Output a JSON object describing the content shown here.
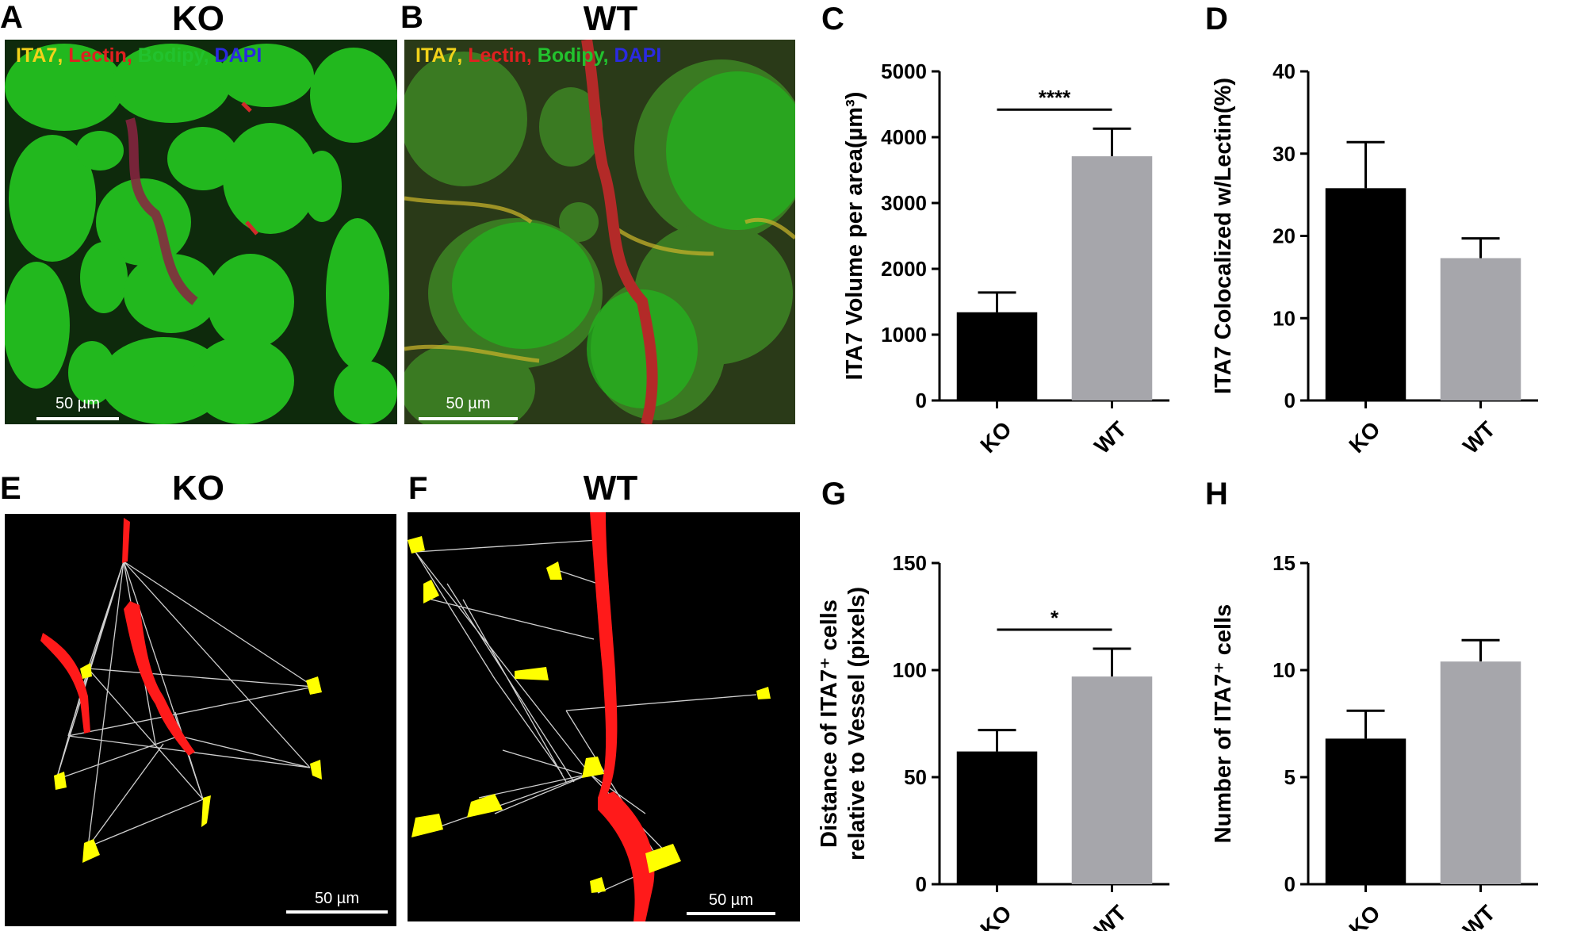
{
  "panels": {
    "A": {
      "letter": "A",
      "title": "KO"
    },
    "B": {
      "letter": "B",
      "title": "WT"
    },
    "C": {
      "letter": "C"
    },
    "D": {
      "letter": "D"
    },
    "E": {
      "letter": "E",
      "title": "KO"
    },
    "F": {
      "letter": "F",
      "title": "WT"
    },
    "G": {
      "letter": "G"
    },
    "H": {
      "letter": "H"
    }
  },
  "stain_legend": [
    {
      "text": "ITA7",
      "color": "#f2d21a"
    },
    {
      "text": ", ",
      "color": "#f2d21a"
    },
    {
      "text": "Lectin",
      "color": "#e02020"
    },
    {
      "text": ", ",
      "color": "#e02020"
    },
    {
      "text": "Bodipy",
      "color": "#22c22e"
    },
    {
      "text": ", ",
      "color": "#22c22e"
    },
    {
      "text": "DAPI",
      "color": "#2a2ae0"
    }
  ],
  "scale_bar_label": "50 µm",
  "colors": {
    "ko_bar": "#000000",
    "wt_bar": "#a6a6ab",
    "vessel": "#ff1a1a",
    "ita7_cell": "#ffff00",
    "connection": "#cfcfcf",
    "fiber_green": "#22b81e"
  },
  "chart_data": [
    {
      "panel": "C",
      "type": "bar",
      "categories": [
        "KO",
        "WT"
      ],
      "values": [
        1340,
        3710
      ],
      "error": [
        300,
        420
      ],
      "ylabel": "ITA7 Volume per area(µm³)",
      "ylim": [
        0,
        5000
      ],
      "yticks": [
        0,
        1000,
        2000,
        3000,
        4000,
        5000
      ],
      "significance": "****"
    },
    {
      "panel": "D",
      "type": "bar",
      "categories": [
        "KO",
        "WT"
      ],
      "values": [
        25.8,
        17.3
      ],
      "error": [
        5.6,
        2.4
      ],
      "ylabel": "ITA7 Colocalized w/Lectin(%)",
      "ylim": [
        0,
        40
      ],
      "yticks": [
        0,
        10,
        20,
        30,
        40
      ],
      "significance": ""
    },
    {
      "panel": "G",
      "type": "bar",
      "categories": [
        "KO",
        "WT"
      ],
      "values": [
        62,
        97
      ],
      "error": [
        10,
        13
      ],
      "ylabel_line1": "Distance of ITA7⁺ cells",
      "ylabel_line2": "relative to Vessel (pixels)",
      "ylim": [
        0,
        150
      ],
      "yticks": [
        0,
        50,
        100,
        150
      ],
      "significance": "*"
    },
    {
      "panel": "H",
      "type": "bar",
      "categories": [
        "KO",
        "WT"
      ],
      "values": [
        6.8,
        10.4
      ],
      "error": [
        1.3,
        1.0
      ],
      "ylabel": "Number of ITA7⁺ cells",
      "ylim": [
        0,
        15
      ],
      "yticks": [
        0,
        5,
        10,
        15
      ],
      "significance": ""
    }
  ]
}
